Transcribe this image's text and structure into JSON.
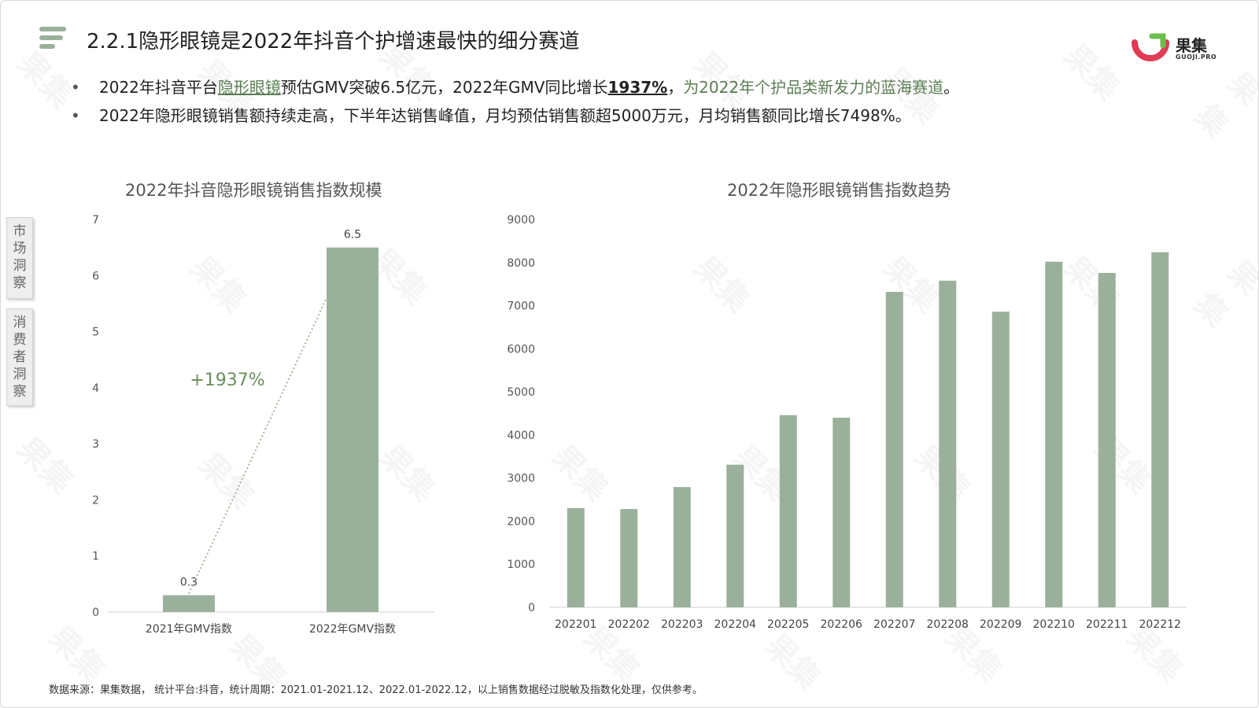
{
  "header": {
    "title": "2.2.1隐形眼镜是2022年抖音个护增速最快的细分赛道",
    "logo_text": "果集",
    "logo_sub": "GUOJI.PRO"
  },
  "bullets": [
    {
      "p1": "2022年抖音平台",
      "p2": "隐形眼镜",
      "p3": "预估GMV突破6.5亿元，2022年GMV同比增长",
      "p4": "1937%",
      "p5": "，",
      "p6": "为2022年个护品类新发力的蓝海赛道",
      "p7": "。"
    },
    {
      "text": "2022年隐形眼镜销售额持续走高，下半年达销售峰值，月均预估销售额超5000万元，月均销售额同比增长7498%。"
    }
  ],
  "side_tabs": [
    "市场洞察",
    "消费者洞察"
  ],
  "watermark": "果集",
  "footer": "数据来源：果集数据， 统计平台:抖音，统计周期：2021.01-2021.12、2022.01-2022.12，以上销售数据经过脱敏及指数化处理，仅供参考。",
  "colors": {
    "bar": "#9ab09a",
    "accent": "#5c7f53",
    "logo_red": "#e03c55",
    "logo_green": "#6bbf4e"
  },
  "chart_data": [
    {
      "type": "bar",
      "title": "2022年抖音隐形眼镜销售指数规模",
      "categories": [
        "2021年GMV指数",
        "2022年GMV指数"
      ],
      "values": [
        0.3,
        6.5
      ],
      "value_labels": [
        "0.3",
        "6.5"
      ],
      "ylim": [
        0,
        7
      ],
      "yticks": [
        0,
        1,
        2,
        3,
        4,
        5,
        6,
        7
      ],
      "annotation": "+1937%",
      "grid": false
    },
    {
      "type": "bar",
      "title": "2022年隐形眼镜销售指数趋势",
      "categories": [
        "202201",
        "202202",
        "202203",
        "202204",
        "202205",
        "202206",
        "202207",
        "202208",
        "202209",
        "202210",
        "202211",
        "202212"
      ],
      "values": [
        2300,
        2280,
        2790,
        3310,
        4460,
        4400,
        7320,
        7580,
        6860,
        8020,
        7760,
        8240
      ],
      "ylim": [
        0,
        9000
      ],
      "yticks": [
        0,
        1000,
        2000,
        3000,
        4000,
        5000,
        6000,
        7000,
        8000,
        9000
      ],
      "grid": false
    }
  ]
}
